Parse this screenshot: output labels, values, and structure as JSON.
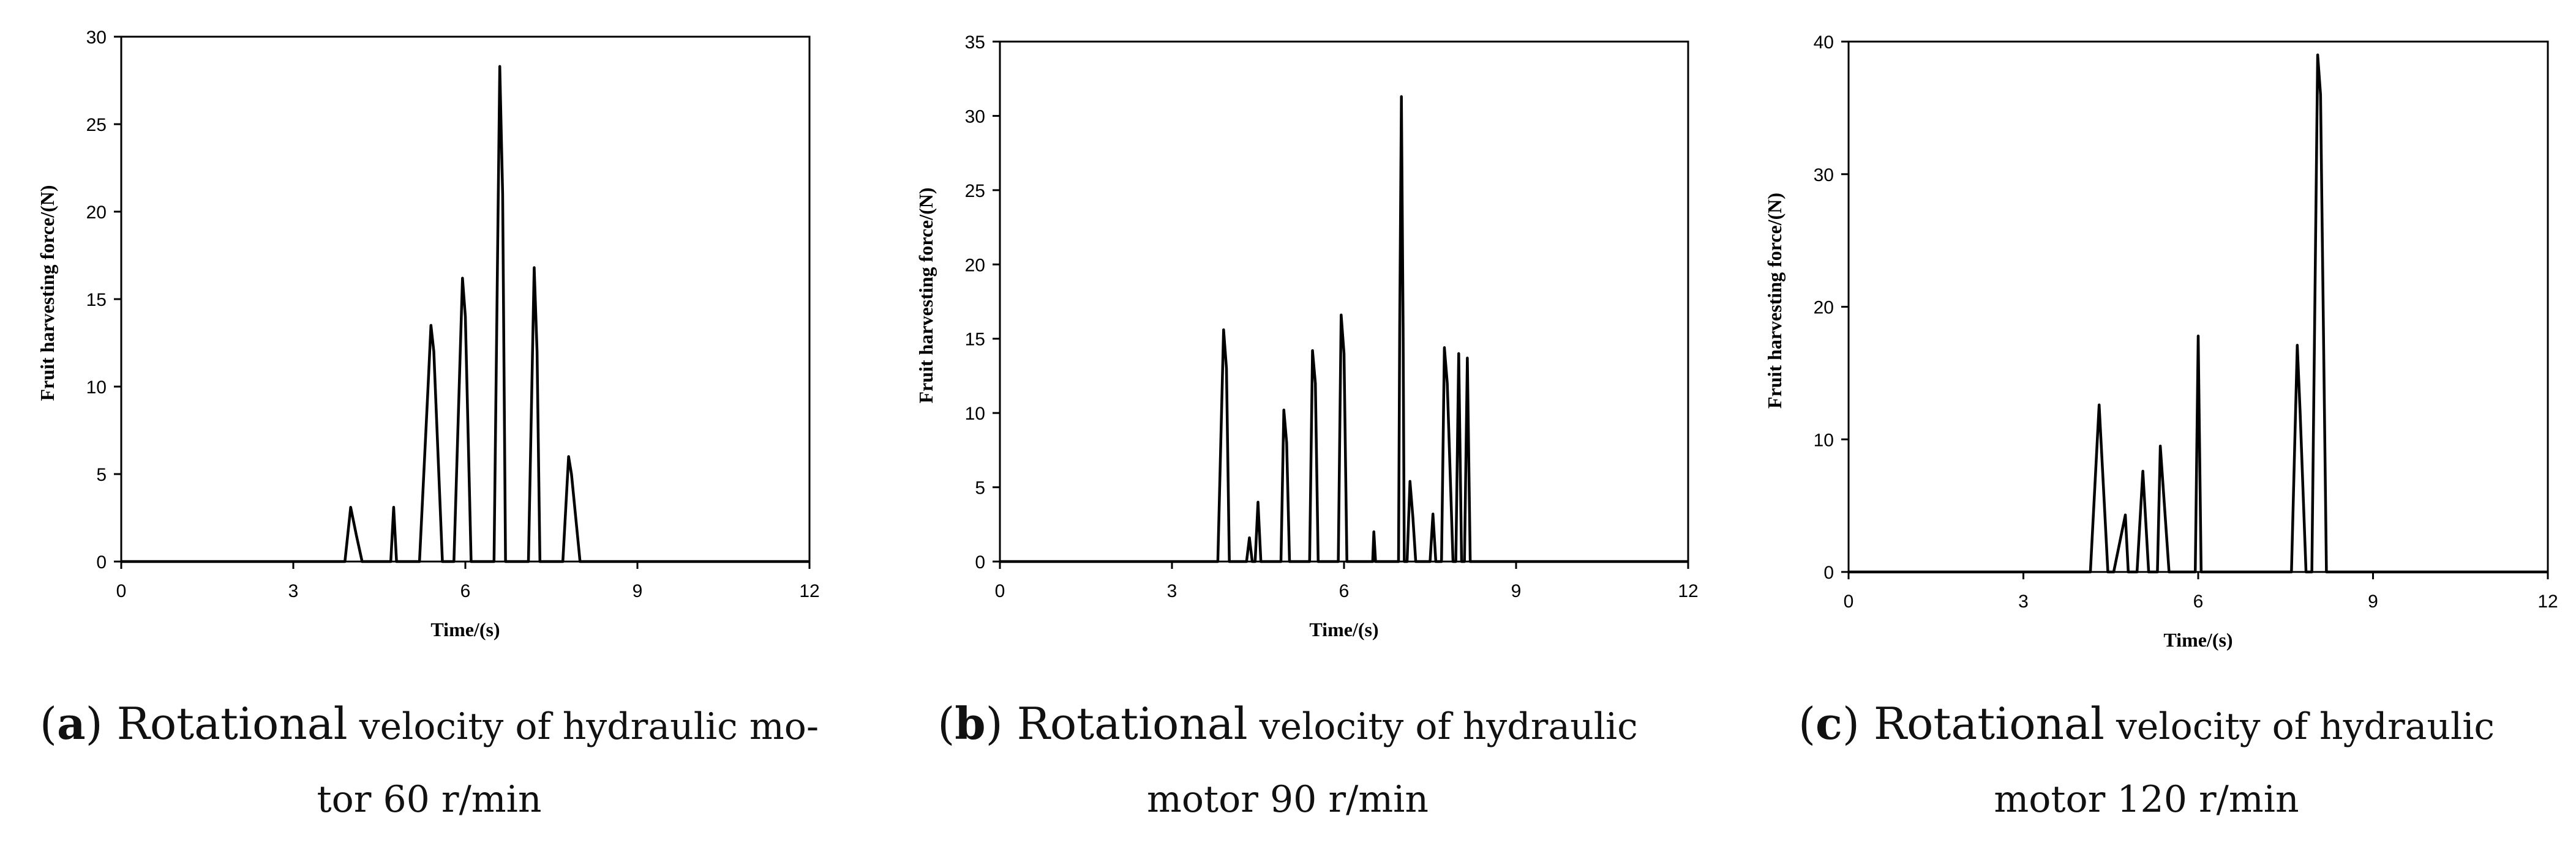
{
  "chart_data": [
    {
      "type": "line",
      "xlabel": "Time/(s)",
      "ylabel": "Fruit harvesting force/(N)",
      "xlim": [
        0,
        12
      ],
      "ylim": [
        0,
        30
      ],
      "xticks": [
        "0",
        "3",
        "6",
        "9",
        "12"
      ],
      "yticks": [
        "0",
        "5",
        "10",
        "15",
        "20",
        "25",
        "30"
      ],
      "grid": false,
      "series": [
        {
          "x": [
            0,
            3.9,
            4.0,
            4.1,
            4.2,
            4.7,
            4.75,
            4.8,
            5.2,
            5.35,
            5.4,
            5.45,
            5.6,
            5.8,
            5.95,
            6.0,
            6.1,
            6.5,
            6.6,
            6.65,
            6.7,
            6.8,
            7.1,
            7.2,
            7.25,
            7.3,
            7.4,
            7.7,
            7.8,
            7.85,
            8.0,
            12
          ],
          "y": [
            0,
            0,
            3.1,
            1.5,
            0,
            0,
            3.1,
            0,
            0,
            10,
            13.5,
            12,
            0,
            0,
            16.2,
            14,
            0,
            0,
            28.3,
            21,
            0,
            0,
            0,
            16.8,
            12,
            0,
            0,
            0,
            6.0,
            5,
            0,
            0
          ]
        }
      ],
      "caption": {
        "letter": "a",
        "lead": "Rotational",
        "rest": " velocity of hydraulic mo-",
        "line2": "tor 60 r/min"
      }
    },
    {
      "type": "line",
      "xlabel": "Time/(s)",
      "ylabel": "Fruit harvesting force/(N)",
      "xlim": [
        0,
        12
      ],
      "ylim": [
        0,
        35
      ],
      "xticks": [
        "0",
        "3",
        "6",
        "9",
        "12"
      ],
      "yticks": [
        "0",
        "5",
        "10",
        "15",
        "20",
        "25",
        "30",
        "35"
      ],
      "grid": false,
      "series": [
        {
          "x": [
            0,
            3.8,
            3.9,
            3.95,
            4.0,
            4.3,
            4.35,
            4.4,
            4.45,
            4.5,
            4.55,
            4.9,
            4.95,
            5.0,
            5.05,
            5.4,
            5.45,
            5.5,
            5.55,
            5.9,
            5.95,
            6.0,
            6.05,
            6.5,
            6.52,
            6.55,
            6.95,
            6.97,
            7.0,
            7.03,
            7.05,
            7.1,
            7.15,
            7.2,
            7.25,
            7.3,
            7.5,
            7.55,
            7.6,
            7.7,
            7.75,
            7.8,
            7.9,
            7.95,
            8.0,
            8.05,
            8.1,
            8.15,
            8.2,
            12
          ],
          "y": [
            0,
            0,
            15.6,
            13,
            0,
            0,
            1.6,
            0,
            0,
            4,
            0,
            0,
            10.2,
            8,
            0,
            0,
            14.2,
            12,
            0,
            0,
            16.6,
            14,
            0,
            0,
            2,
            0,
            0,
            15.7,
            31.3,
            15.7,
            0,
            0,
            5.4,
            3,
            0,
            0,
            0,
            3.2,
            0,
            0,
            14.4,
            12,
            0,
            0,
            14,
            0,
            0,
            13.7,
            0,
            0
          ]
        }
      ],
      "caption": {
        "letter": "b",
        "lead": "Rotational",
        "rest": " velocity of hydraulic",
        "line2": "motor 90 r/min"
      }
    },
    {
      "type": "line",
      "xlabel": "Time/(s)",
      "ylabel": "Fruit harvesting force/(N)",
      "xlim": [
        0,
        12
      ],
      "ylim": [
        0,
        40
      ],
      "xticks": [
        "0",
        "3",
        "6",
        "9",
        "12"
      ],
      "yticks": [
        "0",
        "10",
        "20",
        "30",
        "40"
      ],
      "grid": false,
      "series": [
        {
          "x": [
            0,
            4.15,
            4.3,
            4.45,
            4.5,
            4.55,
            4.75,
            4.8,
            4.95,
            5.05,
            5.15,
            5.25,
            5.3,
            5.35,
            5.5,
            5.95,
            6.0,
            6.05,
            6.1,
            7.6,
            7.7,
            7.75,
            7.85,
            7.95,
            8.05,
            8.1,
            8.2,
            12
          ],
          "y": [
            0,
            0,
            12.6,
            0,
            0,
            0,
            4.3,
            0,
            0,
            7.6,
            0,
            0,
            0,
            9.5,
            0,
            0,
            17.8,
            0,
            0,
            0,
            17.1,
            12,
            0,
            0,
            39,
            36,
            0,
            0
          ]
        }
      ],
      "caption": {
        "letter": "c",
        "lead": "Rotational",
        "rest": " velocity of hydraulic",
        "line2": "motor 120 r/min"
      }
    }
  ]
}
